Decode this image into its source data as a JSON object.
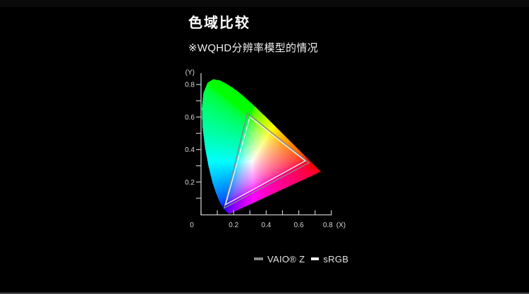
{
  "header": {
    "title": "色域比较",
    "subtitle": "※WQHD分辨率模型的情况"
  },
  "chart_data": {
    "type": "chromaticity_diagram",
    "title": "色域比较",
    "subtitle": "※WQHD分辨率模型的情况",
    "xlabel": "(X)",
    "ylabel": "(Y)",
    "xlim": [
      0,
      0.8
    ],
    "ylim": [
      0,
      0.85
    ],
    "x_ticks": [
      0,
      0.1,
      0.2,
      0.3,
      0.4,
      0.5,
      0.6,
      0.7,
      0.8
    ],
    "x_tick_labels": [
      "0",
      "",
      "0.2",
      "",
      "0.4",
      "",
      "0.6",
      "",
      "0.8"
    ],
    "y_ticks": [
      0.1,
      0.2,
      0.3,
      0.4,
      0.5,
      0.6,
      0.7,
      0.8
    ],
    "y_tick_labels": [
      "",
      "0.2",
      "",
      "0.4",
      "",
      "0.6",
      "",
      "0.8"
    ],
    "grid": false,
    "axis_color": "#c6c6c6",
    "tick_label_color": "#d9d9d9",
    "legend_position": "bottom-center",
    "series": [
      {
        "name": "VAIO® Z",
        "type": "gamut_triangle",
        "color": "#878787",
        "vertices_xy": [
          [
            0.662,
            0.318
          ],
          [
            0.285,
            0.625
          ],
          [
            0.142,
            0.04
          ]
        ]
      },
      {
        "name": "sRGB",
        "type": "gamut_triangle",
        "color": "#f2f2f2",
        "vertices_xy": [
          [
            0.64,
            0.33
          ],
          [
            0.3,
            0.6
          ],
          [
            0.15,
            0.06
          ]
        ]
      }
    ],
    "spectral_locus_xy": [
      [
        0.1741,
        0.005
      ],
      [
        0.174,
        0.005
      ],
      [
        0.1733,
        0.0048
      ],
      [
        0.1726,
        0.0048
      ],
      [
        0.1714,
        0.0051
      ],
      [
        0.1689,
        0.0069
      ],
      [
        0.1644,
        0.0109
      ],
      [
        0.1566,
        0.0177
      ],
      [
        0.144,
        0.0297
      ],
      [
        0.1241,
        0.0578
      ],
      [
        0.1096,
        0.0868
      ],
      [
        0.0913,
        0.1327
      ],
      [
        0.0687,
        0.2007
      ],
      [
        0.0454,
        0.295
      ],
      [
        0.0235,
        0.4127
      ],
      [
        0.0082,
        0.5384
      ],
      [
        0.0039,
        0.6548
      ],
      [
        0.0139,
        0.7502
      ],
      [
        0.0389,
        0.812
      ],
      [
        0.0743,
        0.8338
      ],
      [
        0.1142,
        0.8262
      ],
      [
        0.1547,
        0.8059
      ],
      [
        0.1929,
        0.7816
      ],
      [
        0.2296,
        0.7543
      ],
      [
        0.2658,
        0.7243
      ],
      [
        0.3016,
        0.6923
      ],
      [
        0.3373,
        0.6589
      ],
      [
        0.3731,
        0.6245
      ],
      [
        0.4087,
        0.5896
      ],
      [
        0.4441,
        0.5547
      ],
      [
        0.4788,
        0.5202
      ],
      [
        0.5125,
        0.4866
      ],
      [
        0.5448,
        0.4544
      ],
      [
        0.5752,
        0.4242
      ],
      [
        0.6029,
        0.3965
      ],
      [
        0.627,
        0.3725
      ],
      [
        0.6482,
        0.3514
      ],
      [
        0.6658,
        0.334
      ],
      [
        0.6915,
        0.3083
      ],
      [
        0.7079,
        0.292
      ],
      [
        0.719,
        0.2809
      ],
      [
        0.73,
        0.27
      ],
      [
        0.7347,
        0.2653
      ]
    ]
  }
}
